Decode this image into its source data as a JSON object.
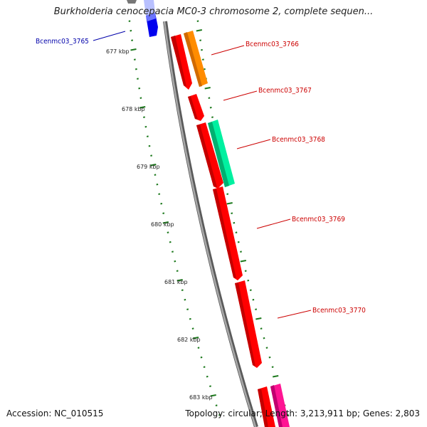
{
  "title": "Burkholderia cenocepacia MC0-3 chromosome 2, complete sequen...",
  "accession": "Accession: NC_010515",
  "topology": "Topology: circular; Length: 3,213,911 bp; Genes: 2,803",
  "colors": {
    "backbone": "#8a8a8a",
    "tick": "#1e7a1e",
    "label_forward": "#cc0000",
    "label_reverse": "#0000aa"
  },
  "kbp_labels": [
    "677 kbp",
    "678 kbp",
    "679 kbp",
    "680 kbp",
    "681 kbp",
    "682 kbp",
    "683 kbp"
  ],
  "genes": [
    {
      "name": "Bcenmc03_3765",
      "strand": "reverse",
      "color": "#0000ff"
    },
    {
      "name": "Bcenmc03_3766",
      "strand": "forward",
      "color": "#ff8c00"
    },
    {
      "name": "Bcenmc03_3767",
      "strand": "forward",
      "color": "#ff0000"
    },
    {
      "name": "Bcenmc03_3768",
      "strand": "forward",
      "color": "#00e890"
    },
    {
      "name": "Bcenmc03_3769",
      "strand": "forward",
      "color": "#ff0000"
    },
    {
      "name": "Bcenmc03_3770",
      "strand": "forward",
      "color": "#ff0000"
    }
  ]
}
